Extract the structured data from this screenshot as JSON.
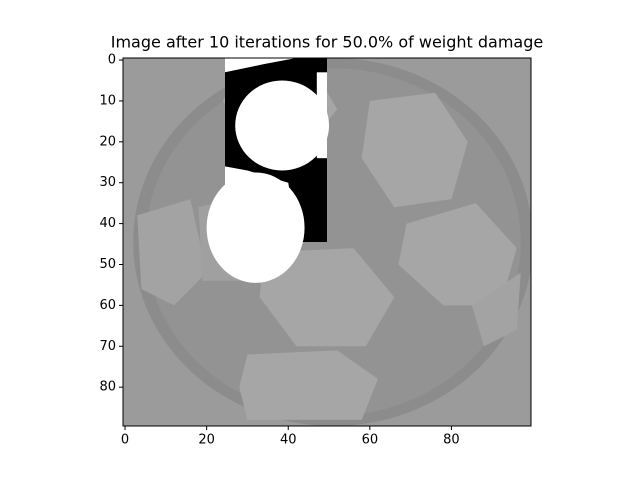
{
  "chart_data": {
    "type": "image",
    "title": "Image after 10 iterations for 50.0% of weight damage",
    "xlim": [
      -0.5,
      99.5
    ],
    "ylim": [
      89.5,
      -0.5
    ],
    "xticks": [
      0,
      20,
      40,
      60,
      80
    ],
    "yticks": [
      0,
      10,
      20,
      30,
      40,
      50,
      60,
      70,
      80
    ]
  }
}
